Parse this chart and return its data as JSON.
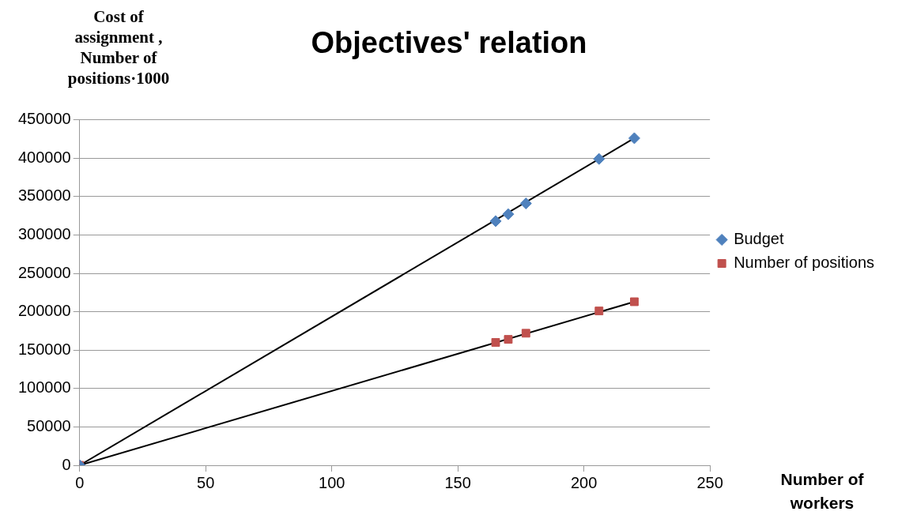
{
  "chart_data": {
    "type": "scatter",
    "title": "Objectives' relation",
    "xlabel": "Number of workers",
    "ylabel": "Cost of assignment , Number of positions·1000",
    "x": [
      0,
      165,
      170,
      177,
      206,
      220
    ],
    "series": [
      {
        "name": "Budget",
        "color": "#4f81bd",
        "marker": "diamond",
        "values": [
          0,
          318000,
          327000,
          341000,
          399000,
          426000
        ]
      },
      {
        "name": "Number of positions",
        "color": "#c0504d",
        "marker": "square",
        "values": [
          0,
          160000,
          164000,
          172000,
          201000,
          213000
        ]
      },
      {
        "type": "line",
        "color": "#000000",
        "marker": "none",
        "values": [
          0,
          null,
          null,
          null,
          null,
          426000
        ]
      },
      {
        "type": "line",
        "color": "#000000",
        "marker": "none",
        "values": [
          0,
          null,
          null,
          null,
          null,
          213000
        ]
      }
    ],
    "xlim": [
      0,
      250
    ],
    "xticks": [
      0,
      50,
      100,
      150,
      200,
      250
    ],
    "ylim": [
      0,
      450000
    ],
    "yticks": [
      0,
      50000,
      100000,
      150000,
      200000,
      250000,
      300000,
      350000,
      400000,
      450000
    ],
    "grid": "y",
    "legend": "right"
  }
}
